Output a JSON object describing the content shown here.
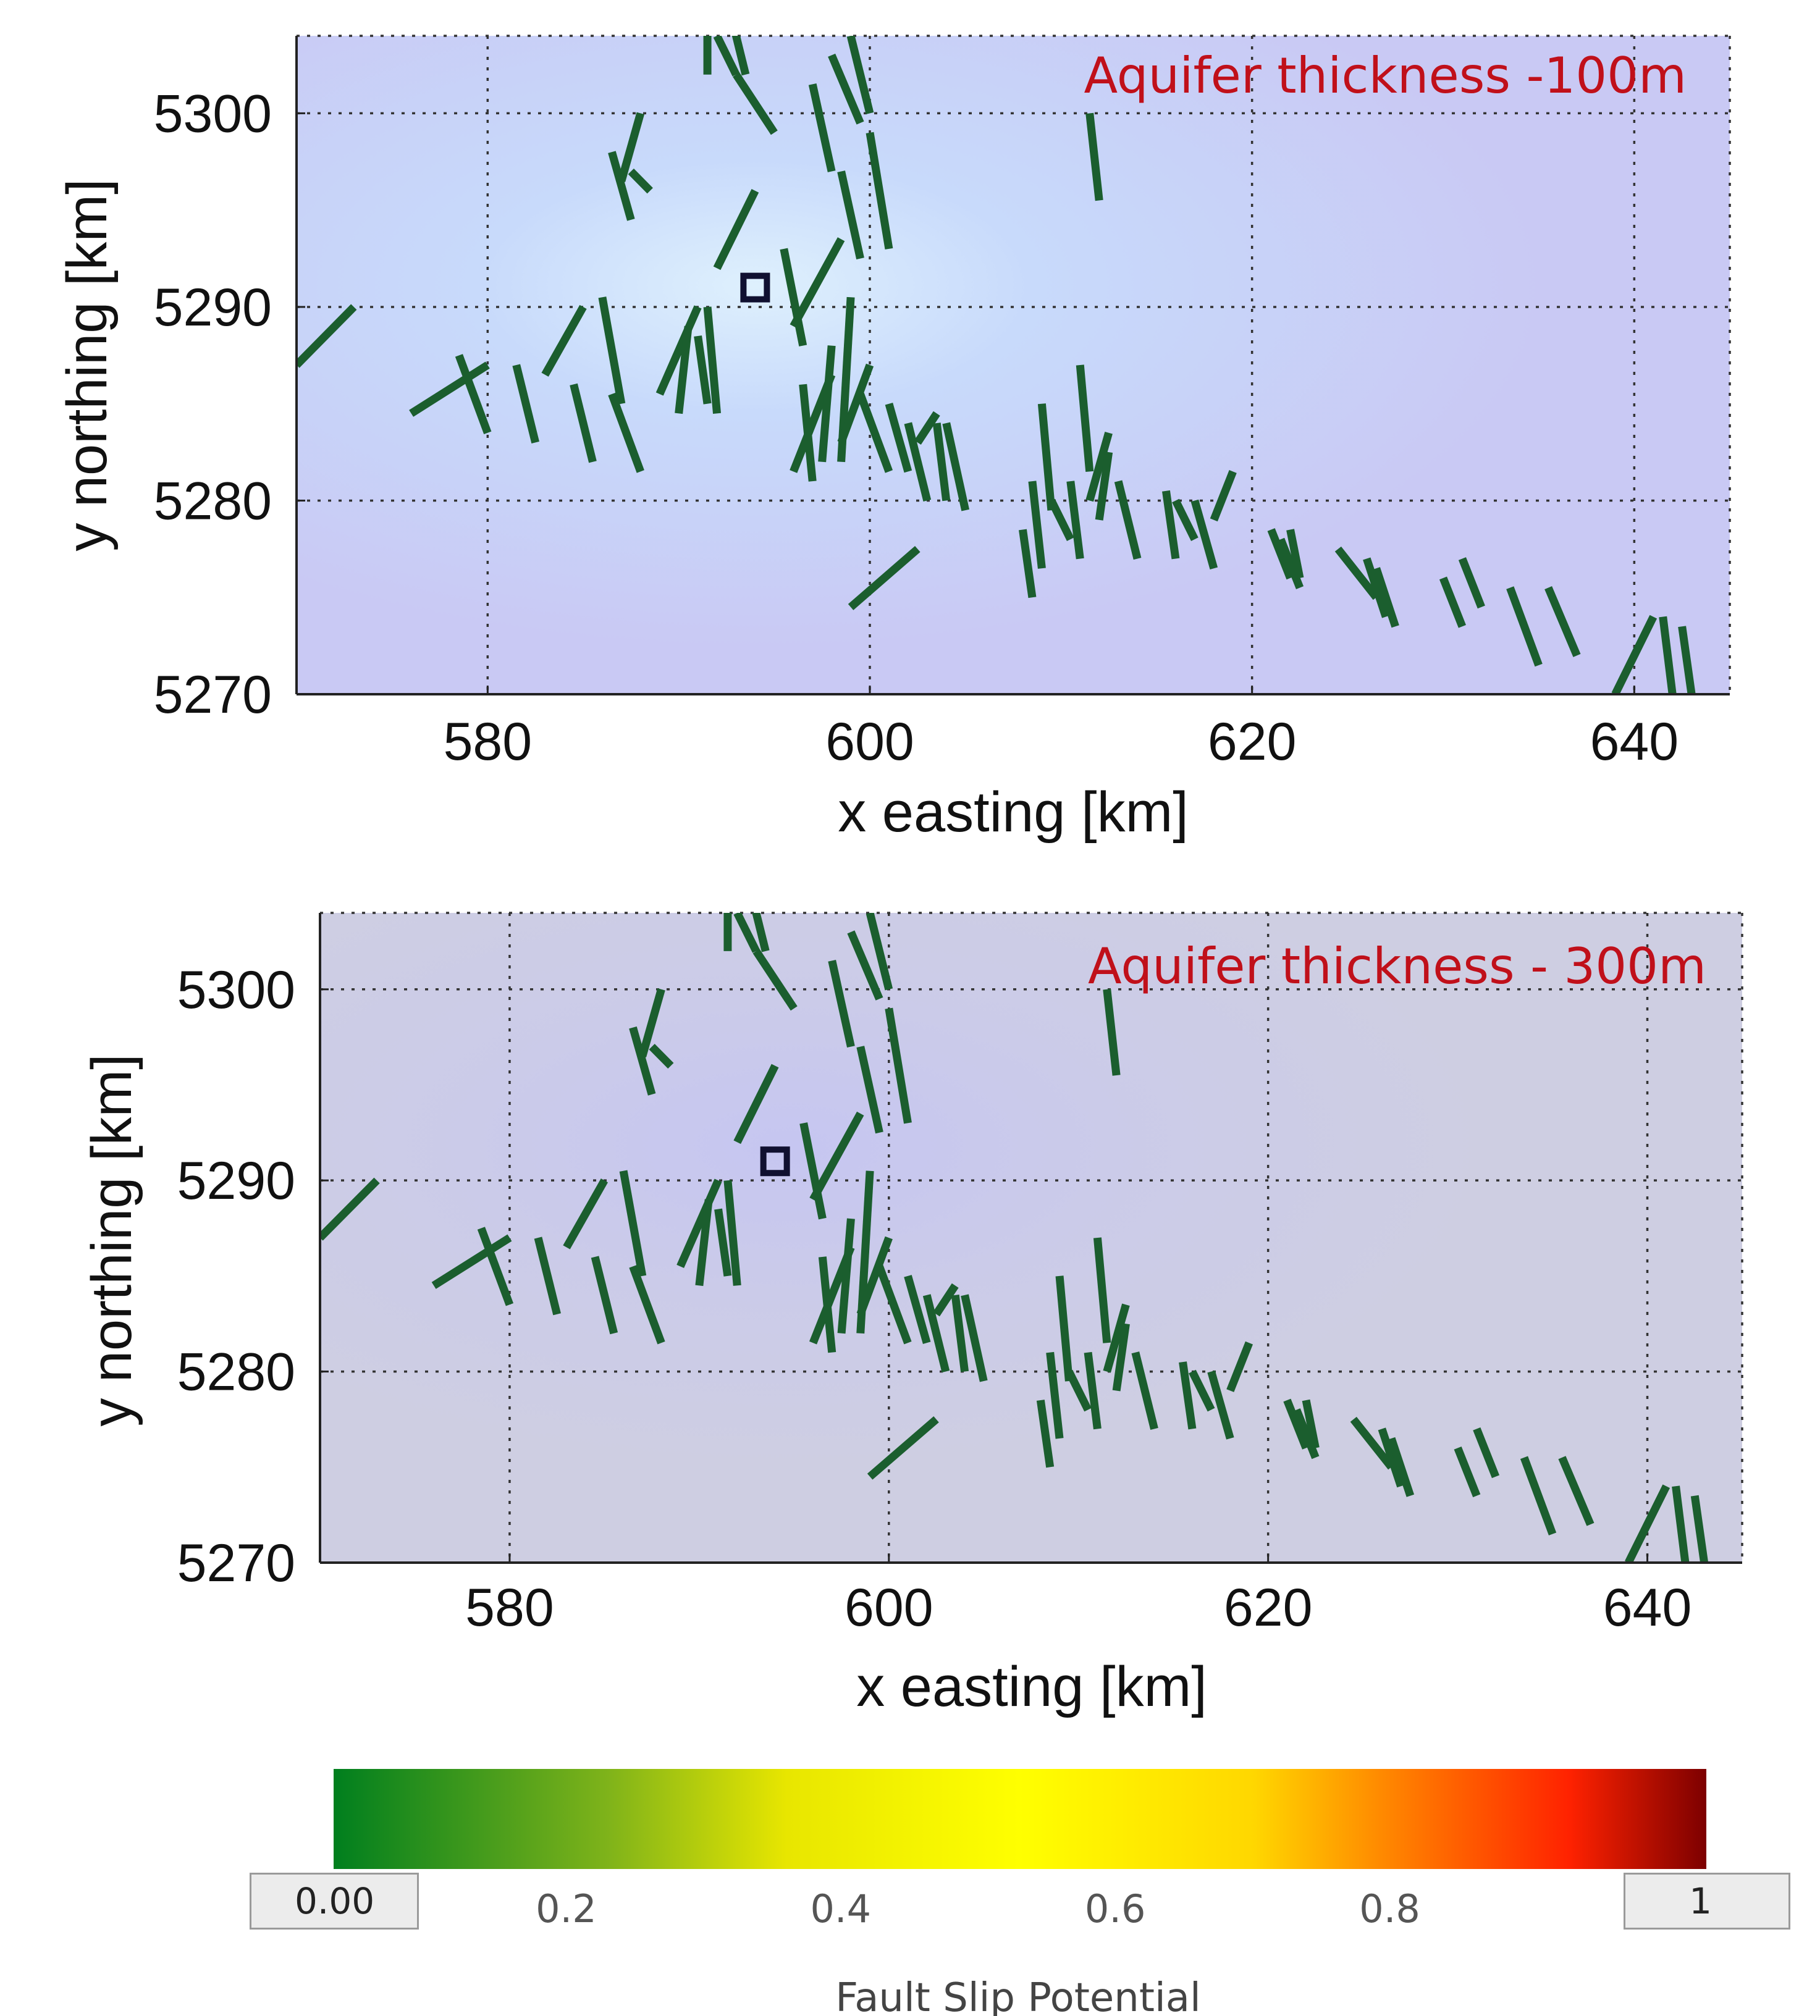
{
  "chart_data": [
    {
      "type": "line",
      "title": "Aquifer thickness -100m",
      "xlabel": "x easting [km]",
      "ylabel": "y northing [km]",
      "xlim": [
        570,
        645
      ],
      "ylim": [
        5270,
        5304
      ],
      "xticks": [
        "580",
        "600",
        "620",
        "640"
      ],
      "yticks": [
        "5270",
        "5280",
        "5290",
        "5300"
      ],
      "grid": true,
      "well": {
        "x": 594,
        "y": 5291
      },
      "series": [
        {
          "name": "faults",
          "color": "#1b5e2e",
          "fault_slip_potential": 0.0
        }
      ]
    },
    {
      "type": "line",
      "title": "Aquifer thickness - 300m",
      "xlabel": "x easting [km]",
      "ylabel": "y northing [km]",
      "xlim": [
        570,
        645
      ],
      "ylim": [
        5270,
        5304
      ],
      "xticks": [
        "580",
        "600",
        "620",
        "640"
      ],
      "yticks": [
        "5270",
        "5280",
        "5290",
        "5300"
      ],
      "grid": true,
      "well": {
        "x": 594,
        "y": 5291
      },
      "series": [
        {
          "name": "faults",
          "color": "#1b5e2e",
          "fault_slip_potential": 0.0
        }
      ]
    }
  ],
  "faults": [
    [
      570,
      5287,
      573,
      5290
    ],
    [
      576,
      5284.5,
      580,
      5287
    ],
    [
      578.5,
      5287.5,
      580,
      5283.5
    ],
    [
      581.5,
      5287,
      582.5,
      5283
    ],
    [
      583,
      5286.5,
      585,
      5290
    ],
    [
      584.5,
      5286,
      585.5,
      5282
    ],
    [
      586,
      5290.5,
      587,
      5285
    ],
    [
      586.5,
      5285.5,
      588,
      5281.5
    ],
    [
      586.5,
      5298,
      587.5,
      5294.5
    ],
    [
      587.5,
      5297,
      588.5,
      5296
    ],
    [
      587,
      5296.5,
      588,
      5300
    ],
    [
      589,
      5285.5,
      591,
      5290
    ],
    [
      590,
      5284.5,
      590.5,
      5289
    ],
    [
      591,
      5288.5,
      591.5,
      5285
    ],
    [
      591.5,
      5290,
      592,
      5284.5
    ],
    [
      592,
      5292,
      594,
      5296
    ],
    [
      591.5,
      5302,
      591.5,
      5306
    ],
    [
      592.5,
      5306,
      593.5,
      5302
    ],
    [
      593,
      5302,
      595,
      5299
    ],
    [
      592,
      5304,
      593,
      5302
    ],
    [
      595.5,
      5293,
      596.5,
      5288
    ],
    [
      596,
      5289,
      598.5,
      5293.5
    ],
    [
      596.5,
      5286,
      597,
      5281
    ],
    [
      596,
      5281.5,
      598,
      5286.5
    ],
    [
      597.5,
      5282,
      598,
      5288
    ],
    [
      598.5,
      5282,
      599,
      5290.5
    ],
    [
      598.5,
      5283,
      600,
      5287
    ],
    [
      597,
      5301.5,
      598,
      5297
    ],
    [
      598,
      5303,
      599.5,
      5299.5
    ],
    [
      599,
      5304,
      600,
      5300
    ],
    [
      600,
      5299,
      601,
      5293
    ],
    [
      598.5,
      5297,
      599.5,
      5292.5
    ],
    [
      599.5,
      5285.5,
      601,
      5281.5
    ],
    [
      601,
      5285,
      602,
      5281.5
    ],
    [
      602,
      5284,
      603,
      5280
    ],
    [
      602.5,
      5283,
      603.5,
      5284.5
    ],
    [
      603.5,
      5284,
      604,
      5280
    ],
    [
      604,
      5284,
      605,
      5279.5
    ],
    [
      608,
      5278.5,
      608.5,
      5275
    ],
    [
      608.5,
      5281,
      609,
      5276.5
    ],
    [
      609,
      5285,
      609.5,
      5279.5
    ],
    [
      609.5,
      5280,
      610.5,
      5278
    ],
    [
      610.5,
      5281,
      611,
      5277
    ],
    [
      611,
      5287,
      611.5,
      5281.5
    ],
    [
      611.5,
      5280,
      612.5,
      5283.5
    ],
    [
      612,
      5279,
      612.5,
      5282.5
    ],
    [
      611.5,
      5300,
      612,
      5295.5
    ],
    [
      613,
      5281,
      614,
      5277
    ],
    [
      615.5,
      5280.5,
      616,
      5277
    ],
    [
      616,
      5280,
      617,
      5278
    ],
    [
      617,
      5280,
      618,
      5276.5
    ],
    [
      618,
      5279,
      619,
      5281.5
    ],
    [
      621,
      5278.5,
      622,
      5276
    ],
    [
      621.5,
      5278,
      622.5,
      5275.5
    ],
    [
      622,
      5278.5,
      622.5,
      5276
    ],
    [
      624.5,
      5277.5,
      626.5,
      5275
    ],
    [
      626,
      5277,
      627,
      5274
    ],
    [
      626.5,
      5276.5,
      627.5,
      5273.5
    ],
    [
      630,
      5276,
      631,
      5273.5
    ],
    [
      631,
      5277,
      632,
      5274.5
    ],
    [
      633.5,
      5275.5,
      635,
      5271.5
    ],
    [
      635.5,
      5275.5,
      637,
      5272
    ],
    [
      639,
      5270,
      641,
      5274
    ],
    [
      641.5,
      5274,
      642,
      5270
    ],
    [
      642.5,
      5273.5,
      643,
      5270
    ],
    [
      599,
      5274.5,
      602.5,
      5277.5
    ]
  ],
  "colorbar": {
    "label": "Fault Slip Potential",
    "min_label": "0.00",
    "max_label": "1",
    "tick_labels": [
      "0.2",
      "0.4",
      "0.6",
      "0.8"
    ],
    "tick_values": [
      0.2,
      0.4,
      0.6,
      0.8
    ],
    "colors": [
      "#007f1e",
      "#7fb31a",
      "#e8e600",
      "#ffff00",
      "#ffd700",
      "#ff8c00",
      "#ff2200",
      "#7d0000"
    ],
    "color_positions": [
      0.0,
      0.2,
      0.33,
      0.5,
      0.67,
      0.76,
      0.9,
      1.0
    ]
  }
}
